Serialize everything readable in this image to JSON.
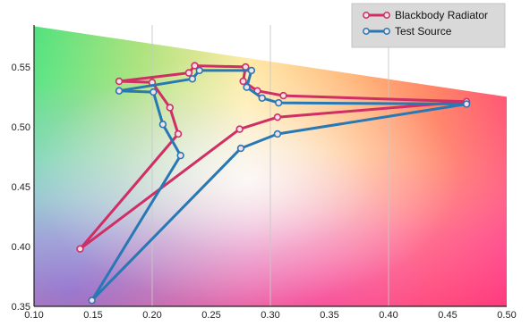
{
  "chart_data": {
    "type": "line",
    "background": "chromaticity-gradient",
    "xlim": [
      0.1,
      0.5
    ],
    "ylim": [
      0.35,
      0.585
    ],
    "x_ticks": [
      "0.10",
      "0.15",
      "0.20",
      "0.25",
      "0.30",
      "0.35",
      "0.40",
      "0.45",
      "0.50"
    ],
    "y_ticks": [
      "0.35",
      "0.40",
      "0.45",
      "0.50",
      "0.55"
    ],
    "x_tick_values": [
      0.1,
      0.15,
      0.2,
      0.25,
      0.3,
      0.35,
      0.4,
      0.45,
      0.5
    ],
    "y_tick_values": [
      0.35,
      0.4,
      0.45,
      0.5,
      0.55
    ],
    "vertical_grid": [
      0.2,
      0.3,
      0.4
    ],
    "spectral_boundary": [
      [
        0.1,
        0.584
      ],
      [
        0.5,
        0.525
      ]
    ],
    "legend_position": "top-right",
    "series": [
      {
        "name": "Blackbody Radiator",
        "color": "#cf2f64",
        "points": [
          [
            0.139,
            0.398
          ],
          [
            0.222,
            0.494
          ],
          [
            0.215,
            0.516
          ],
          [
            0.2,
            0.537
          ],
          [
            0.172,
            0.538
          ],
          [
            0.231,
            0.545
          ],
          [
            0.236,
            0.551
          ],
          [
            0.279,
            0.55
          ],
          [
            0.277,
            0.538
          ],
          [
            0.289,
            0.53
          ],
          [
            0.311,
            0.526
          ],
          [
            0.466,
            0.521
          ],
          [
            0.306,
            0.508
          ],
          [
            0.274,
            0.498
          ],
          [
            0.139,
            0.398
          ]
        ]
      },
      {
        "name": "Test Source",
        "color": "#2878b4",
        "points": [
          [
            0.149,
            0.355
          ],
          [
            0.224,
            0.476
          ],
          [
            0.209,
            0.502
          ],
          [
            0.201,
            0.529
          ],
          [
            0.172,
            0.53
          ],
          [
            0.234,
            0.54
          ],
          [
            0.24,
            0.547
          ],
          [
            0.284,
            0.547
          ],
          [
            0.28,
            0.533
          ],
          [
            0.293,
            0.524
          ],
          [
            0.307,
            0.52
          ],
          [
            0.466,
            0.519
          ],
          [
            0.306,
            0.494
          ],
          [
            0.275,
            0.482
          ],
          [
            0.149,
            0.355
          ]
        ]
      }
    ]
  }
}
